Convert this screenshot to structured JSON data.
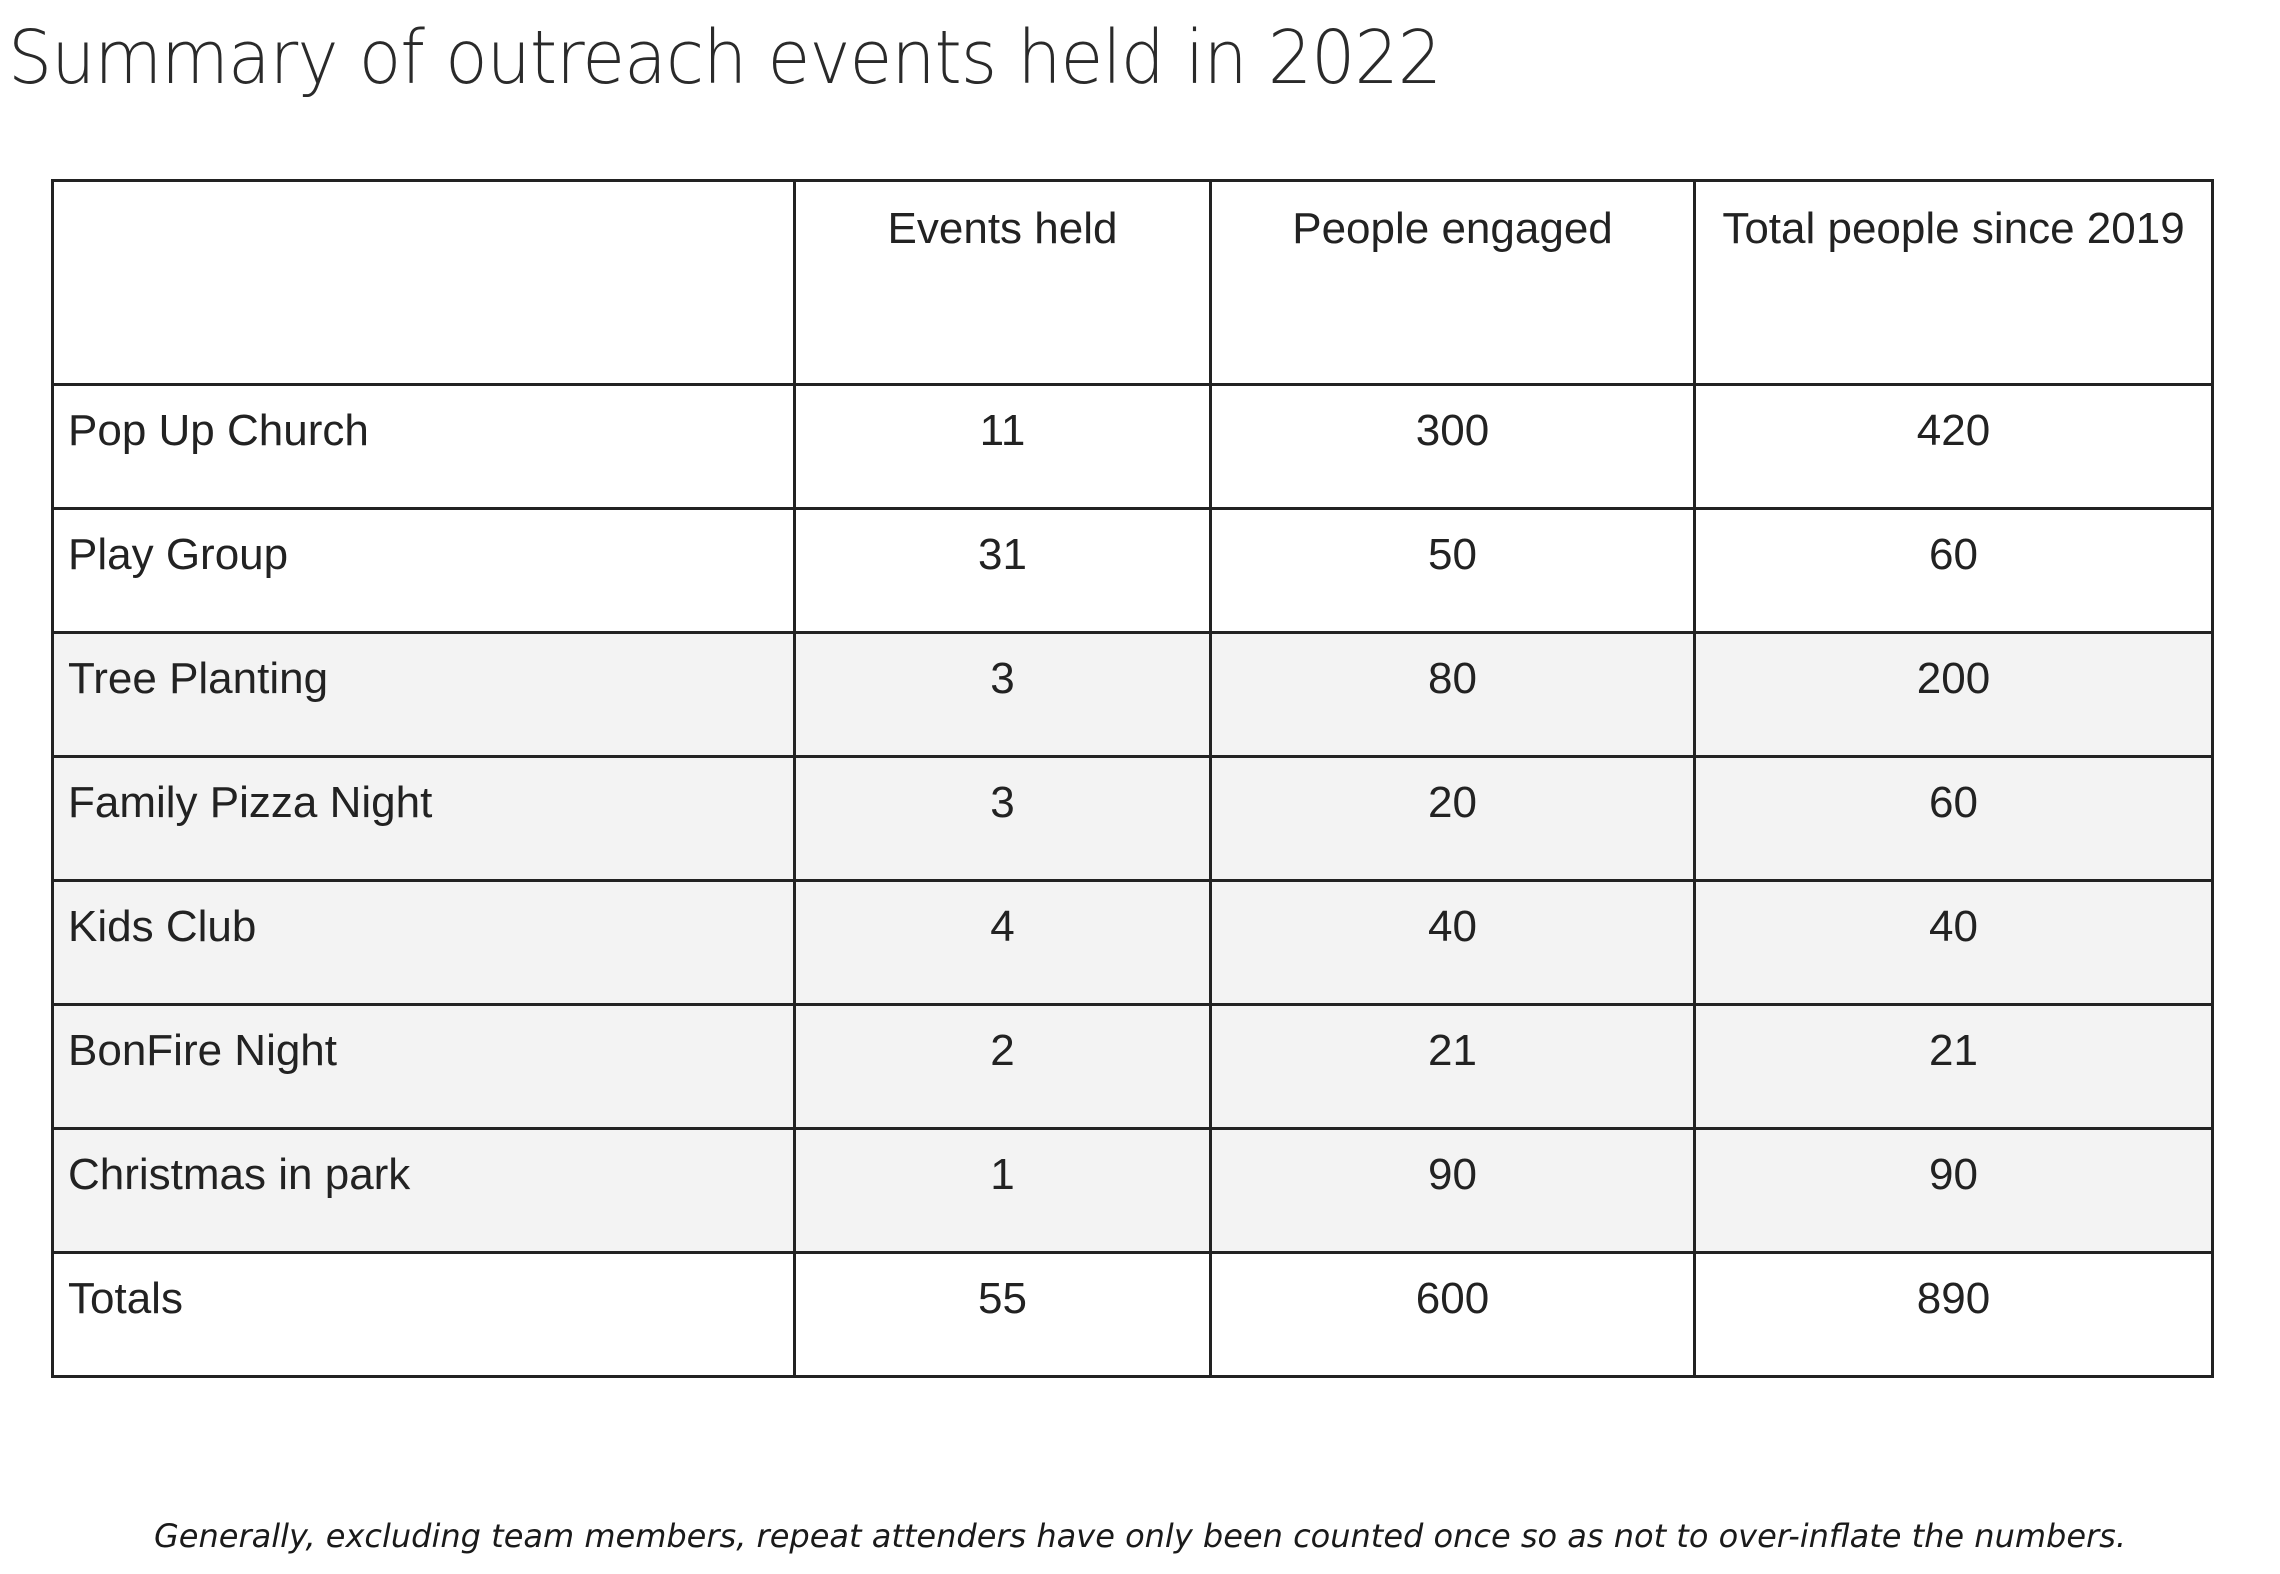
{
  "title": "Summary of outreach events held in 2022",
  "table": {
    "headers": [
      "",
      "Events held",
      "People engaged",
      "Total people since 2019"
    ],
    "rows": [
      {
        "label": "Pop Up Church",
        "events": "11",
        "engaged": "300",
        "total": "420"
      },
      {
        "label": "Play Group",
        "events": "31",
        "engaged": "50",
        "total": "60"
      },
      {
        "label": "Tree Planting",
        "events": "3",
        "engaged": "80",
        "total": "200"
      },
      {
        "label": "Family Pizza Night",
        "events": "3",
        "engaged": "20",
        "total": "60"
      },
      {
        "label": "Kids Club",
        "events": "4",
        "engaged": "40",
        "total": "40"
      },
      {
        "label": "BonFire Night",
        "events": "2",
        "engaged": "21",
        "total": "21"
      },
      {
        "label": "Christmas in park",
        "events": "1",
        "engaged": "90",
        "total": "90"
      },
      {
        "label": "Totals",
        "events": "55",
        "engaged": "600",
        "total": "890"
      }
    ]
  },
  "footnote": "Generally, excluding team members, repeat attenders have only been counted once so as not to over-inflate the numbers.",
  "colors": {
    "border": "#222222",
    "shaded_row": "#f3f3f3",
    "background": "#ffffff"
  }
}
